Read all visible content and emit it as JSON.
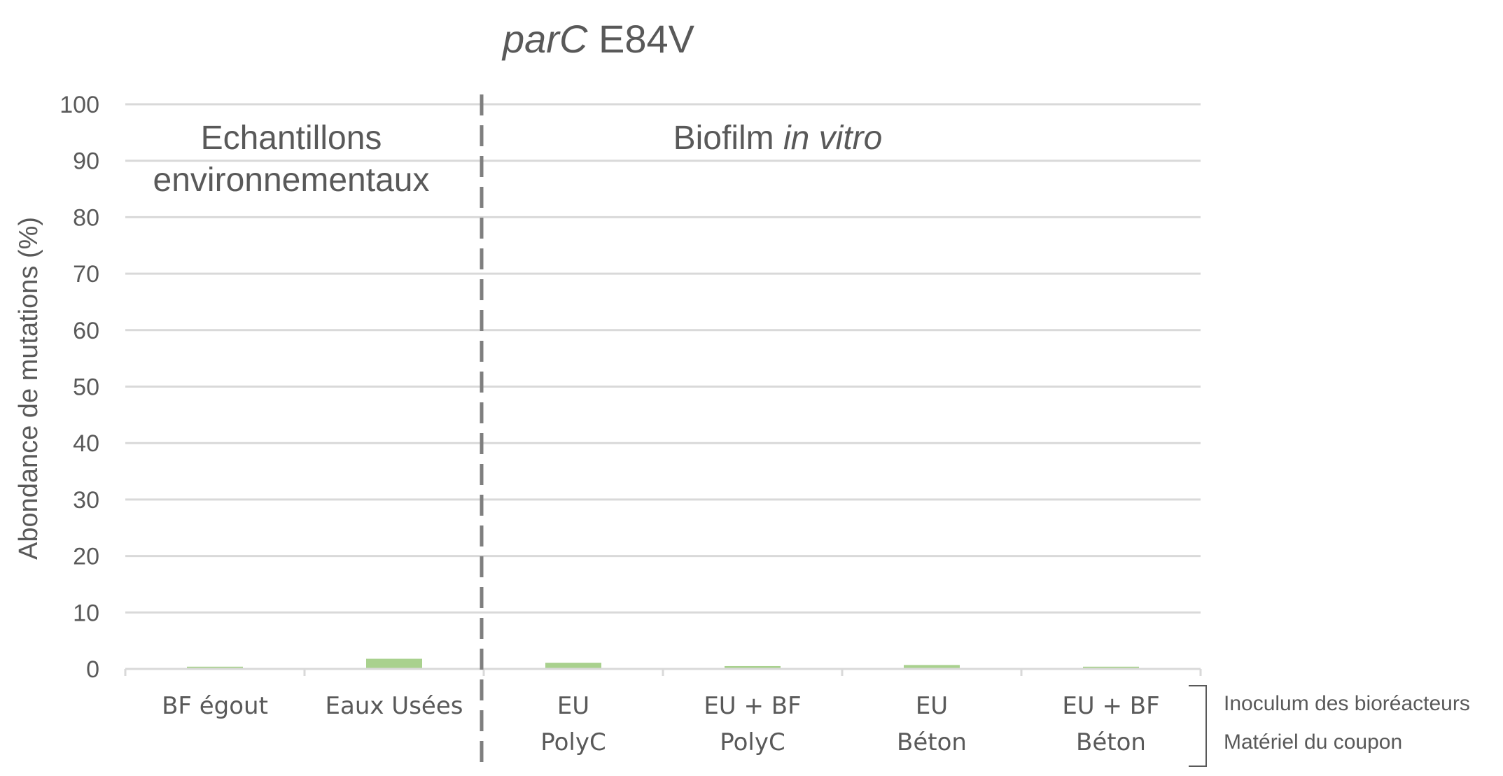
{
  "chart_data": {
    "type": "bar",
    "title": {
      "italic": "parC",
      "regular": " E84V"
    },
    "ylabel": "Abondance de mutations (%)",
    "ylim": [
      0,
      100
    ],
    "yticks": [
      0,
      10,
      20,
      30,
      40,
      50,
      60,
      70,
      80,
      90,
      100
    ],
    "grid": true,
    "bar_color": "#a9d18e",
    "categories": [
      {
        "line1": "BF égout",
        "line2": ""
      },
      {
        "line1": "Eaux Usées",
        "line2": ""
      },
      {
        "line1": "EU",
        "line2": "PolyC"
      },
      {
        "line1": "EU + BF",
        "line2": "PolyC"
      },
      {
        "line1": "EU",
        "line2": "Béton"
      },
      {
        "line1": "EU + BF",
        "line2": "Béton"
      }
    ],
    "values": [
      0.4,
      1.8,
      1.1,
      0.5,
      0.7,
      0.4
    ],
    "regions": [
      {
        "label_lines": [
          "Echantillons",
          "environnementaux"
        ]
      },
      {
        "label_regular": "Biofilm ",
        "label_italic": "in vitro"
      }
    ],
    "category_row_labels": [
      "Inoculum des bioréacteurs",
      "Matériel du coupon"
    ]
  }
}
